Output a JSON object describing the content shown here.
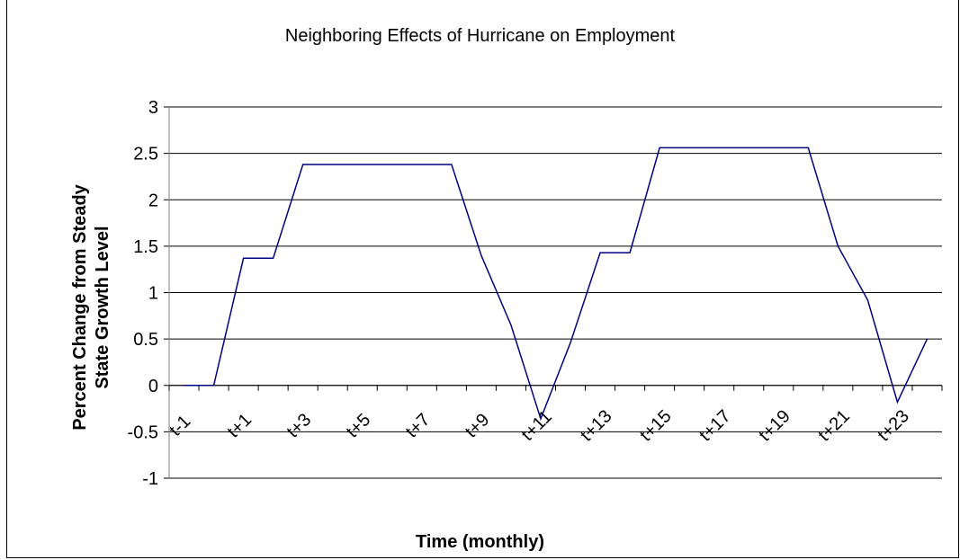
{
  "chart_data": {
    "type": "line",
    "title": "Neighboring Effects of Hurricane on Employment",
    "xlabel": "Time (monthly)",
    "ylabel_lines": [
      "Percent Change from Steady",
      "State Growth Level"
    ],
    "ylim": [
      -1,
      3
    ],
    "yticks": [
      "3",
      "2.5",
      "2",
      "1.5",
      "1",
      "0.5",
      "0",
      "-0.5",
      "-1"
    ],
    "ytick_values": [
      3,
      2.5,
      2,
      1.5,
      1,
      0.5,
      0,
      -0.5,
      -1
    ],
    "categories": [
      "t-1",
      "t",
      "t+1",
      "t+2",
      "t+3",
      "t+4",
      "t+5",
      "t+6",
      "t+7",
      "t+8",
      "t+9",
      "t+10",
      "t+11",
      "t+12",
      "t+13",
      "t+14",
      "t+15",
      "t+16",
      "t+17",
      "t+18",
      "t+19",
      "t+20",
      "t+21",
      "t+22",
      "t+23",
      "t+24"
    ],
    "shown_xtick_labels": [
      "t-1",
      "t+1",
      "t+3",
      "t+5",
      "t+7",
      "t+9",
      "t+11",
      "t+13",
      "t+15",
      "t+17",
      "t+19",
      "t+21",
      "t+23"
    ],
    "series": [
      {
        "values": [
          0,
          0,
          1.37,
          1.37,
          2.38,
          2.38,
          2.38,
          2.38,
          2.38,
          2.38,
          1.4,
          0.65,
          -0.36,
          0.46,
          1.43,
          1.43,
          2.56,
          2.56,
          2.56,
          2.56,
          2.56,
          2.56,
          1.5,
          0.92,
          -0.18,
          0.5
        ]
      }
    ],
    "grid": true,
    "legend": "none",
    "colors": {
      "line": "#000080",
      "grid": "#000000",
      "axis": "#808080"
    }
  }
}
